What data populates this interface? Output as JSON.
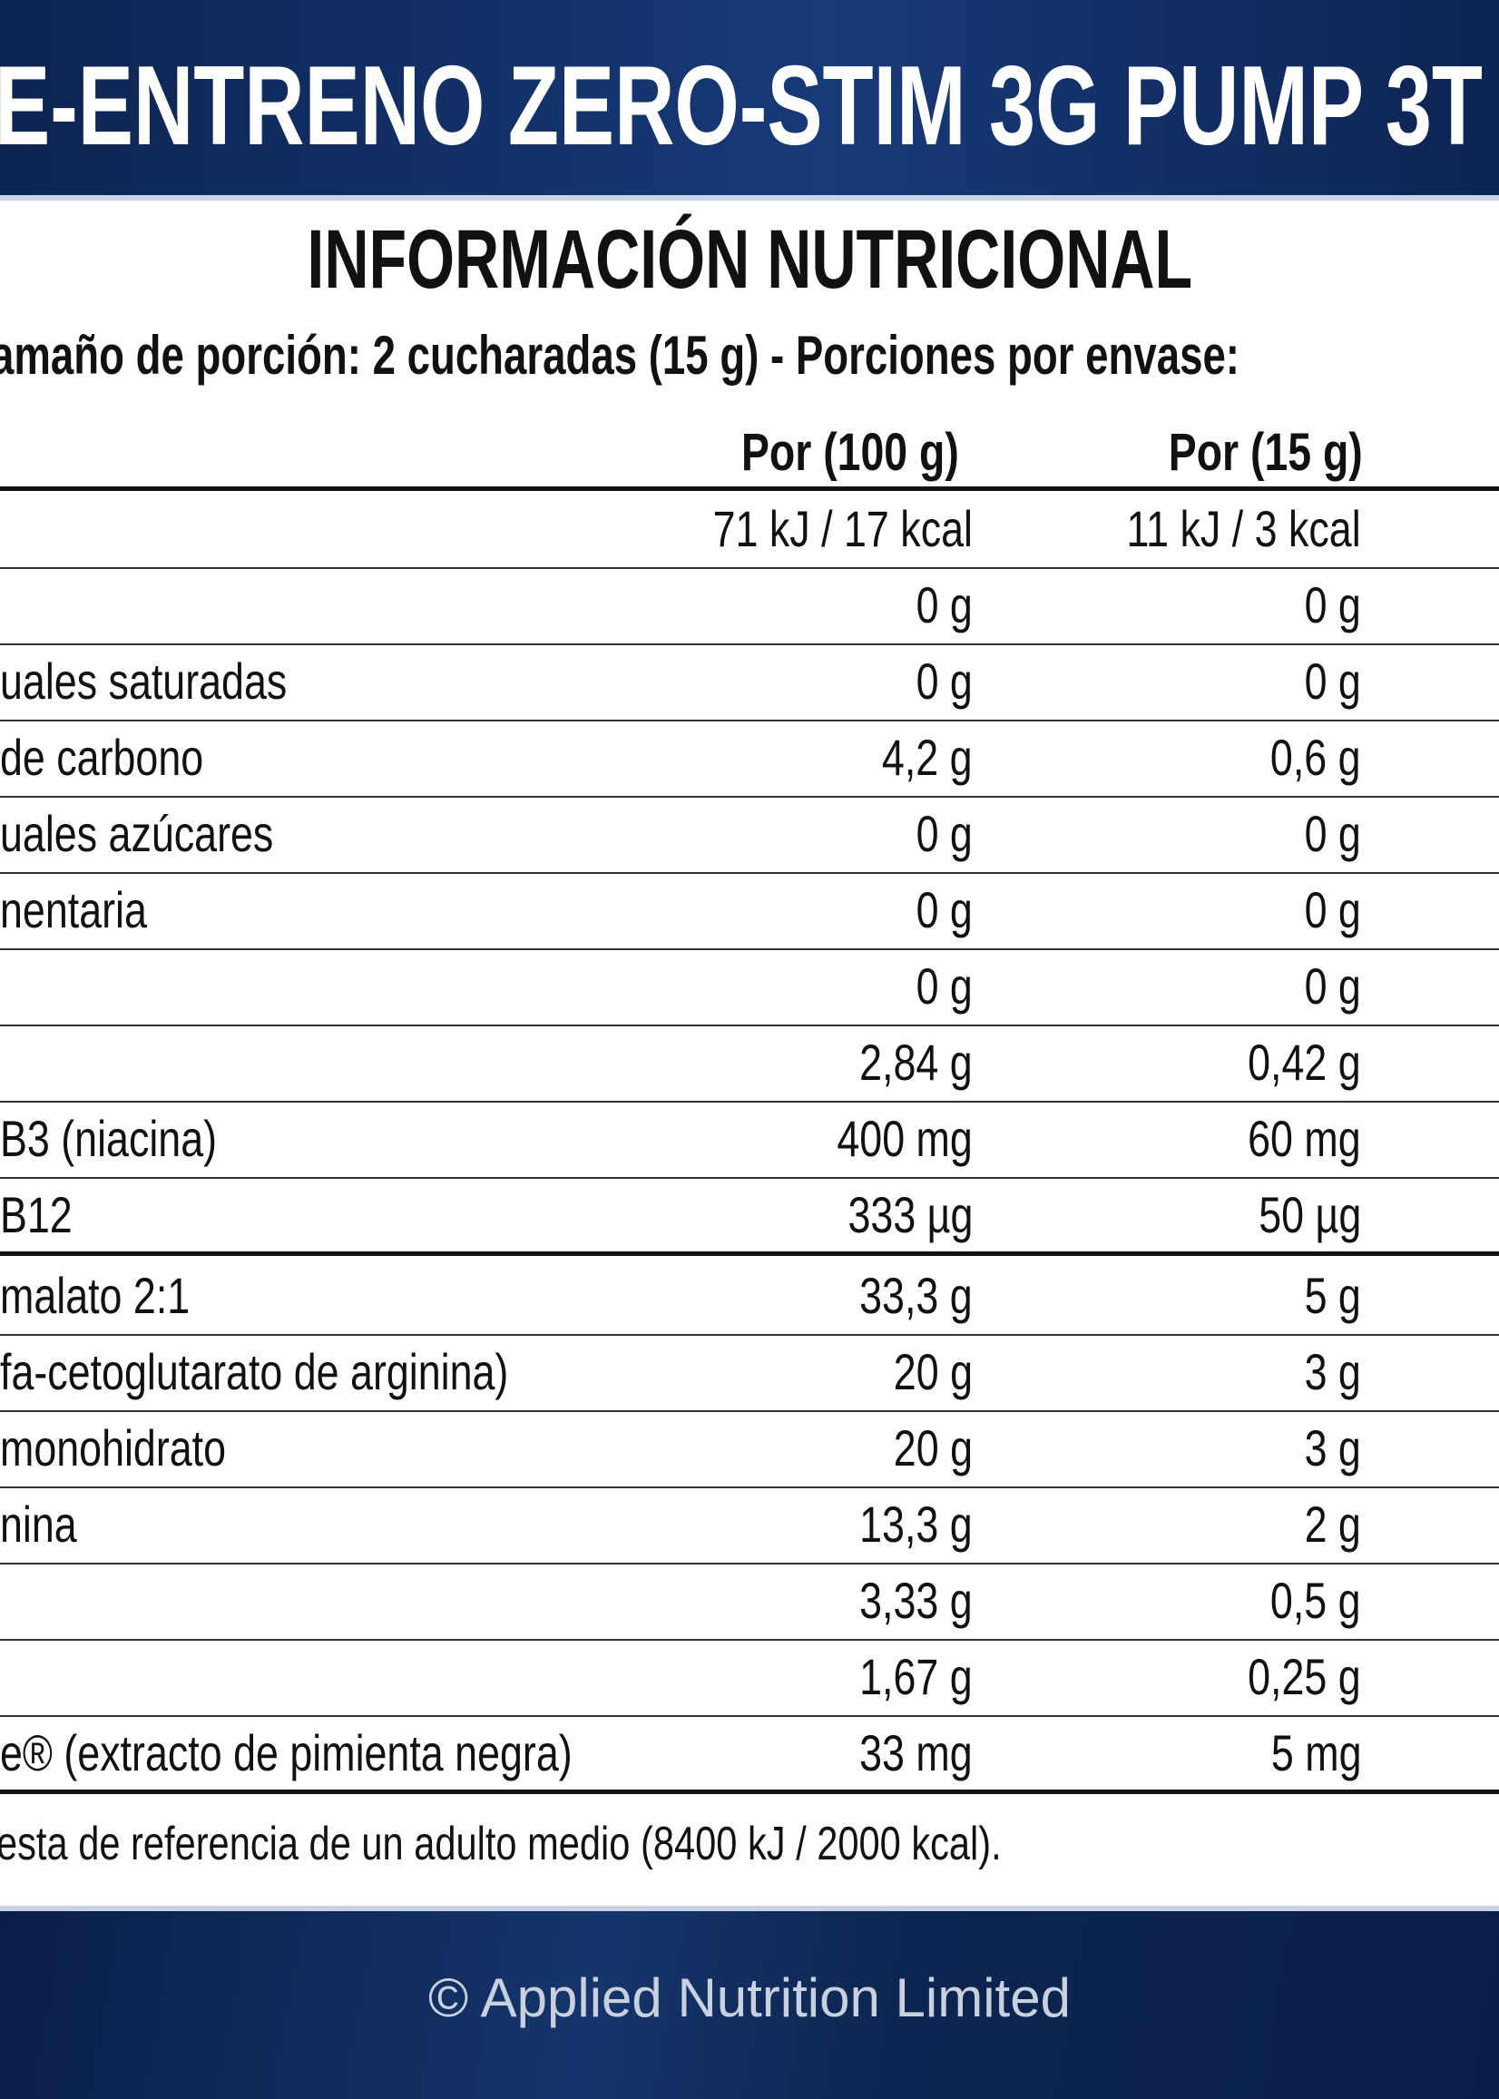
{
  "header": {
    "title": "E-ENTRENO ZERO-STIM 3G PUMP 3T"
  },
  "table": {
    "heading": "INFORMACIÓN NUTRICIONAL",
    "serving": "amaño de porción: 2 cucharadas (15 g) - Porciones por envase:",
    "columns": [
      "Por (100 g)",
      "Por (15 g)"
    ],
    "rows": [
      [
        null,
        "71 kJ / 17 kcal",
        "11 kJ / 3 kcal"
      ],
      [
        null,
        "0 g",
        "0 g"
      ],
      [
        "uales saturadas",
        "0 g",
        "0 g"
      ],
      [
        "de carbono",
        "4,2 g",
        "0,6 g"
      ],
      [
        "uales azúcares",
        "0 g",
        "0 g"
      ],
      [
        "nentaria",
        "0 g",
        "0 g"
      ],
      [
        null,
        "0 g",
        "0 g"
      ],
      [
        null,
        "2,84 g",
        "0,42 g"
      ],
      [
        "B3 (niacina)",
        "400 mg",
        "60 mg"
      ],
      [
        "B12",
        "333 µg",
        "50 µg"
      ],
      [
        "malato 2:1",
        "33,3 g",
        "5 g"
      ],
      [
        "fa-cetoglutarato de arginina)",
        "20 g",
        "3 g"
      ],
      [
        "monohidrato",
        "20 g",
        "3 g"
      ],
      [
        "nina",
        "13,3 g",
        "2 g"
      ],
      [
        null,
        "3,33 g",
        "0,5 g"
      ],
      [
        null,
        "1,67 g",
        "0,25 g"
      ],
      [
        "e® (extracto de pimienta negra)",
        "33 mg",
        "5 mg"
      ]
    ],
    "footnote": "esta de referencia de un adulto medio (8400 kJ / 2000 kcal)."
  },
  "footer": {
    "copyright": "© Applied Nutrition Limited"
  }
}
